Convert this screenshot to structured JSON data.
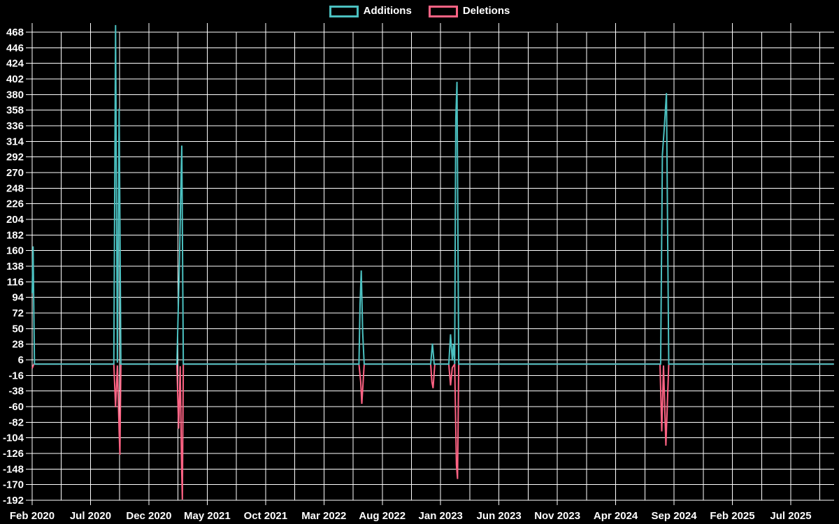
{
  "chart_data": {
    "type": "line",
    "title": "",
    "description": "Code frequency chart: weekly additions and deletions over time on a black background",
    "legend_position": "top-center",
    "grid": true,
    "background_color": "#000000",
    "grid_color": "#ffffff",
    "text_color": "#ffffff",
    "legend": [
      {
        "label": "Additions",
        "color": "#4bc0c0"
      },
      {
        "label": "Deletions",
        "color": "#ff6384"
      }
    ],
    "x_unit": "months since Feb 2020 (ticks every 5 months)",
    "x_ticks": [
      "Feb 2020",
      "Jul 2020",
      "Dec 2020",
      "May 2021",
      "Oct 2021",
      "Mar 2022",
      "Aug 2022",
      "Jan 2023",
      "Jun 2023",
      "Nov 2023",
      "Apr 2024",
      "Sep 2024",
      "Feb 2025",
      "Jul 2025"
    ],
    "y_ticks": [
      468,
      446,
      424,
      402,
      380,
      358,
      336,
      314,
      292,
      270,
      248,
      226,
      204,
      182,
      160,
      138,
      116,
      94,
      72,
      50,
      28,
      6,
      -16,
      -38,
      -60,
      -82,
      -104,
      -126,
      -148,
      -170,
      -192
    ],
    "y_range": [
      -192,
      480
    ],
    "series": [
      {
        "name": "Additions",
        "color": "#4bc0c0",
        "points": [
          [
            0,
            100
          ],
          [
            0.08,
            166
          ],
          [
            0.2,
            0
          ],
          [
            7.0,
            0
          ],
          [
            7.15,
            478
          ],
          [
            7.3,
            2
          ],
          [
            7.45,
            360
          ],
          [
            7.6,
            0
          ],
          [
            12.4,
            0
          ],
          [
            12.5,
            68
          ],
          [
            12.62,
            147
          ],
          [
            12.72,
            230
          ],
          [
            12.82,
            308
          ],
          [
            12.95,
            0
          ],
          [
            28.0,
            0
          ],
          [
            28.1,
            85
          ],
          [
            28.2,
            132
          ],
          [
            28.32,
            45
          ],
          [
            28.45,
            0
          ],
          [
            34.15,
            0
          ],
          [
            34.3,
            29
          ],
          [
            34.45,
            0
          ],
          [
            35.7,
            0
          ],
          [
            35.85,
            42
          ],
          [
            36.0,
            5
          ],
          [
            36.1,
            28
          ],
          [
            36.2,
            0
          ],
          [
            36.3,
            346
          ],
          [
            36.4,
            398
          ],
          [
            36.55,
            0
          ],
          [
            53.85,
            0
          ],
          [
            54.0,
            295
          ],
          [
            54.15,
            330
          ],
          [
            54.35,
            382
          ],
          [
            54.55,
            0
          ],
          [
            68.7,
            0
          ]
        ]
      },
      {
        "name": "Deletions",
        "color": "#ff6384",
        "points": [
          [
            0,
            -6
          ],
          [
            0.15,
            0
          ],
          [
            7.0,
            0
          ],
          [
            7.15,
            -61
          ],
          [
            7.3,
            -2
          ],
          [
            7.45,
            -95
          ],
          [
            7.52,
            -128
          ],
          [
            7.6,
            0
          ],
          [
            12.4,
            0
          ],
          [
            12.55,
            -91
          ],
          [
            12.68,
            -3
          ],
          [
            12.8,
            -142
          ],
          [
            12.87,
            -191
          ],
          [
            12.95,
            0
          ],
          [
            28.0,
            0
          ],
          [
            28.15,
            -25
          ],
          [
            28.25,
            -56
          ],
          [
            28.45,
            0
          ],
          [
            34.15,
            0
          ],
          [
            34.25,
            -25
          ],
          [
            34.35,
            -34
          ],
          [
            34.5,
            0
          ],
          [
            35.7,
            0
          ],
          [
            35.85,
            -30
          ],
          [
            36.0,
            -5
          ],
          [
            36.2,
            0
          ],
          [
            36.35,
            -142
          ],
          [
            36.45,
            -162
          ],
          [
            36.55,
            0
          ],
          [
            53.8,
            0
          ],
          [
            53.95,
            -95
          ],
          [
            54.1,
            -2
          ],
          [
            54.3,
            -115
          ],
          [
            54.55,
            0
          ],
          [
            68.7,
            0
          ]
        ]
      }
    ]
  }
}
